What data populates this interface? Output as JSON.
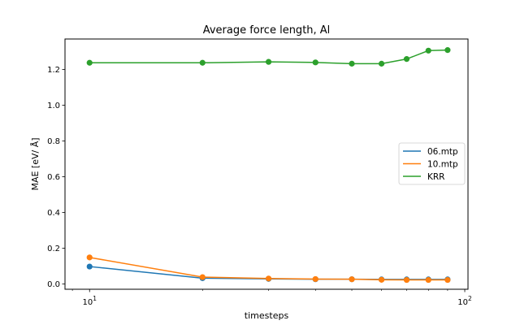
{
  "chart_data": {
    "type": "line",
    "title": "Average force length, Al",
    "xlabel": "timesteps",
    "ylabel": "MAE [eV/ Å]",
    "xscale": "log",
    "xlim": [
      8.6,
      102
    ],
    "ylim": [
      -0.03,
      1.37
    ],
    "x": [
      10,
      20,
      30,
      40,
      50,
      60,
      70,
      80,
      90
    ],
    "x_ticks": [
      {
        "value": 10,
        "base": "10",
        "exp": "1"
      },
      {
        "value": 100,
        "base": "10",
        "exp": "2"
      }
    ],
    "y_ticks": [
      0.0,
      0.2,
      0.4,
      0.6,
      0.8,
      1.0,
      1.2
    ],
    "y_tick_labels": [
      "0.0",
      "0.2",
      "0.4",
      "0.6",
      "0.8",
      "1.0",
      "1.2"
    ],
    "grid": false,
    "legend_position": "center-right",
    "series": [
      {
        "name": "06.mtp",
        "color": "#1f77b4",
        "values": [
          0.097,
          0.032,
          0.028,
          0.026,
          0.026,
          0.025,
          0.025,
          0.025,
          0.025
        ]
      },
      {
        "name": "10.mtp",
        "color": "#ff7f0e",
        "values": [
          0.148,
          0.038,
          0.03,
          0.027,
          0.026,
          0.023,
          0.022,
          0.022,
          0.022
        ]
      },
      {
        "name": "KRR",
        "color": "#2ca02c",
        "values": [
          1.237,
          1.237,
          1.242,
          1.239,
          1.232,
          1.232,
          1.258,
          1.305,
          1.308
        ]
      }
    ]
  }
}
